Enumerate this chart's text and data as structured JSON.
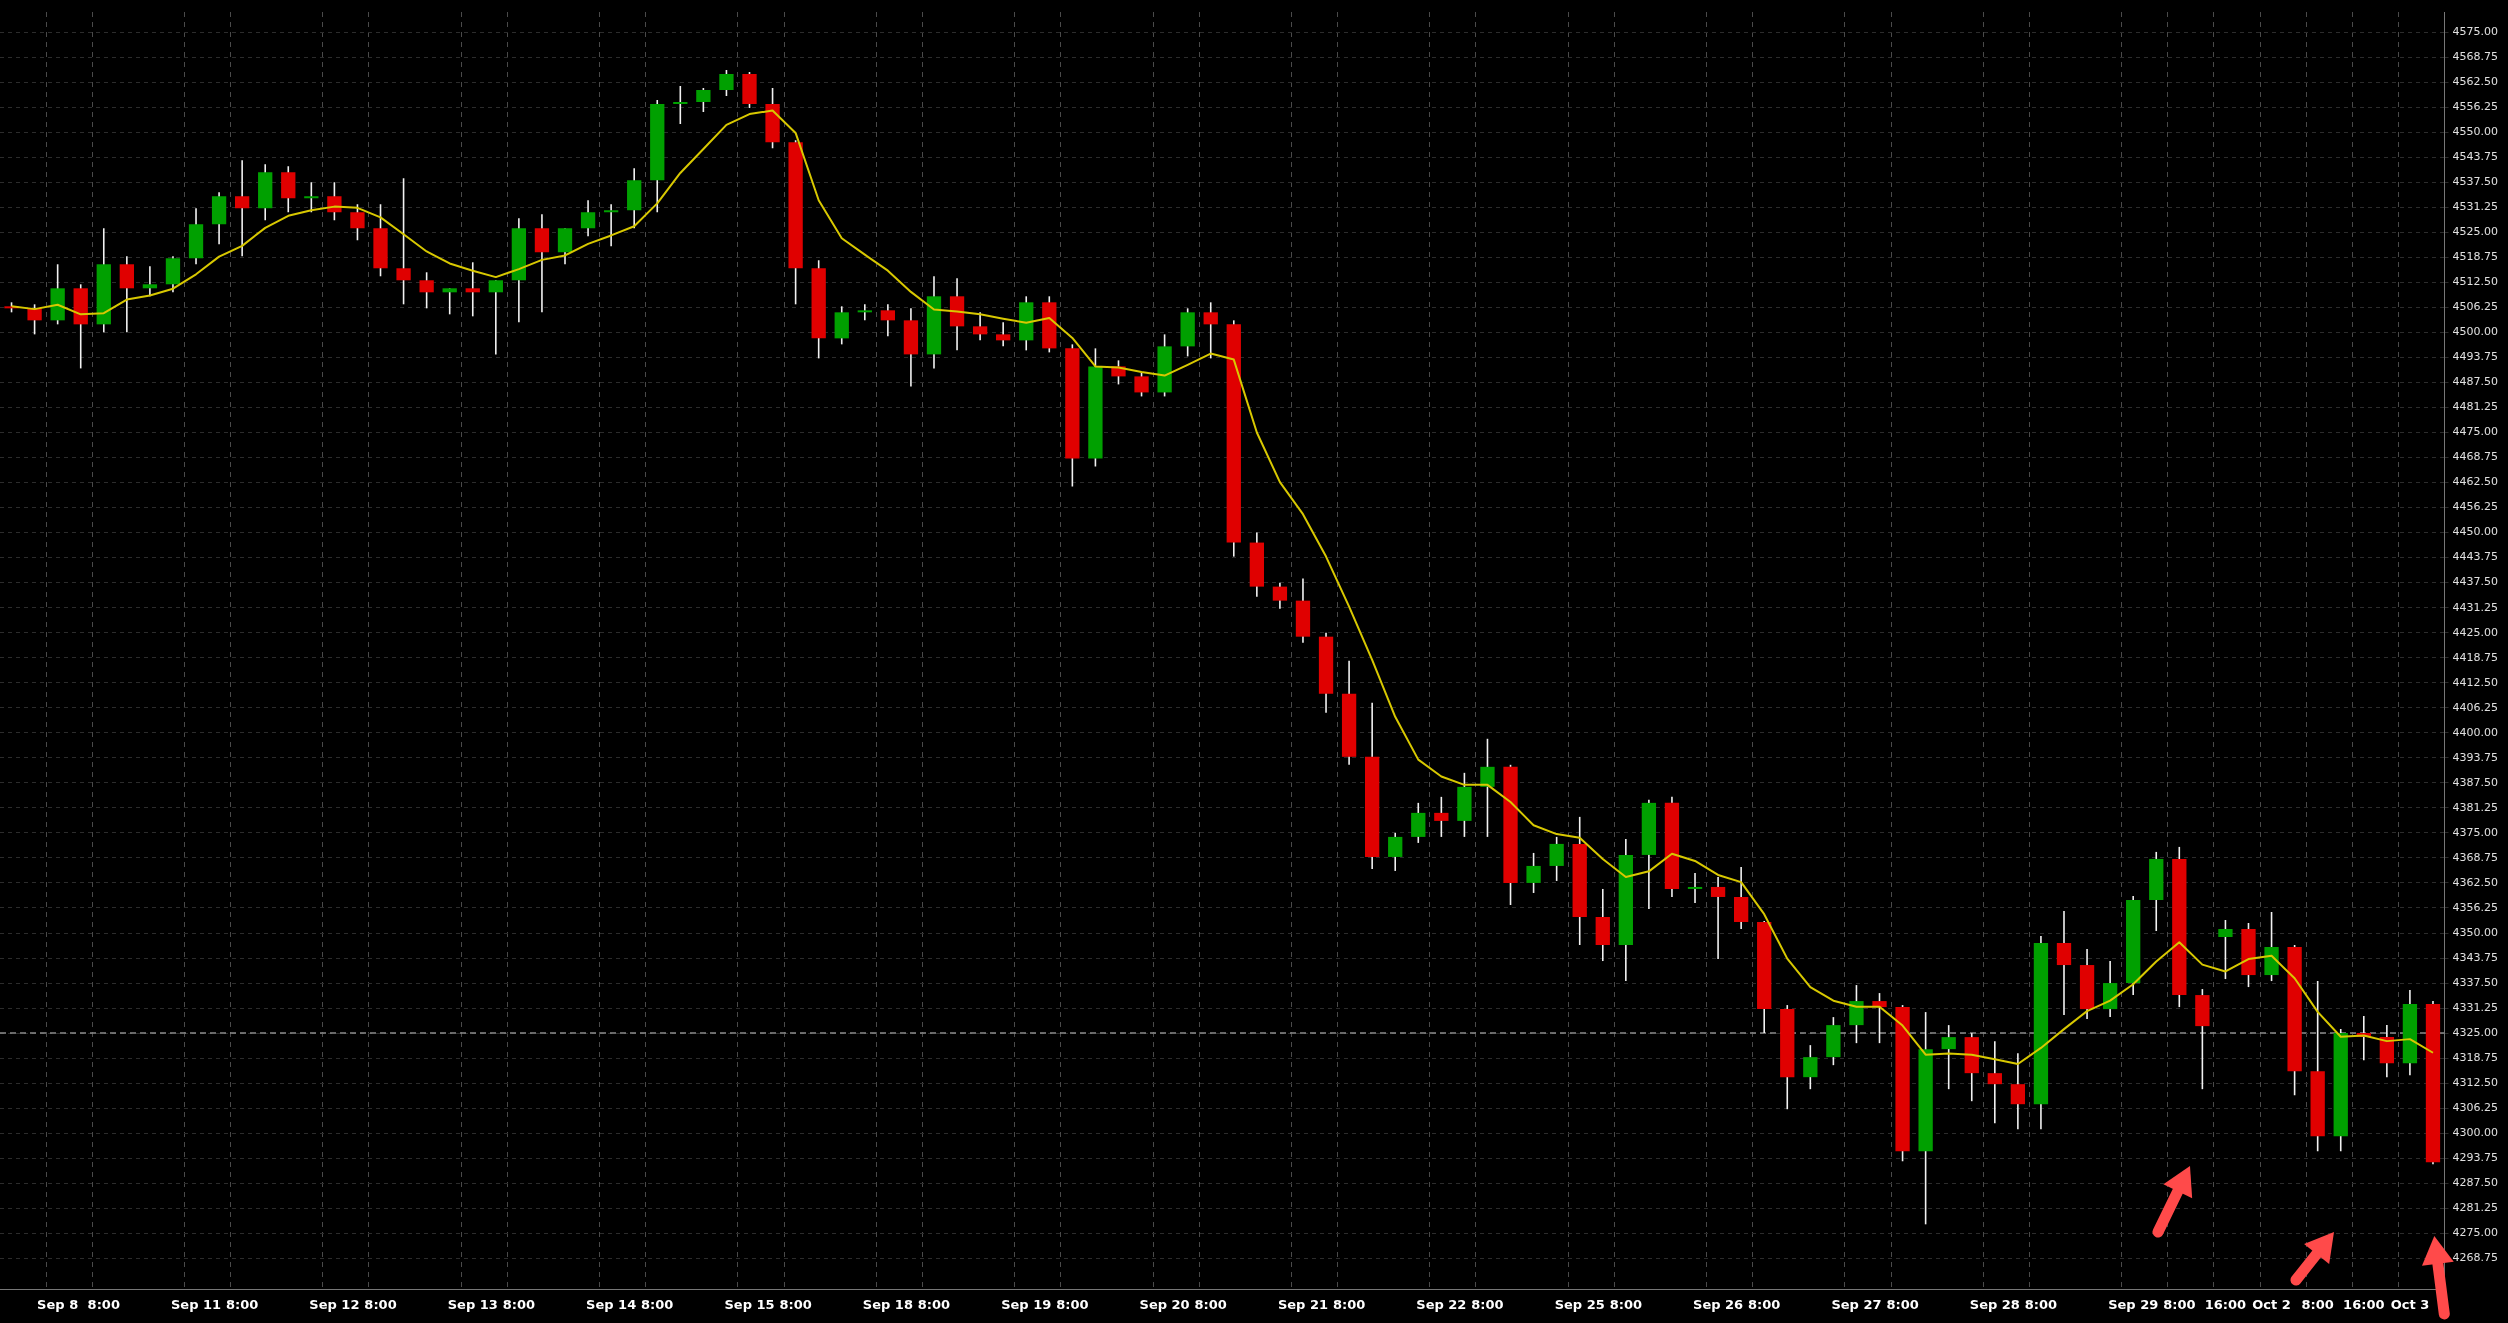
{
  "chart_data": {
    "type": "candlestick",
    "categories": [
      null,
      null,
      "Sep 8",
      null,
      "8:00",
      null,
      null,
      null,
      "Sep 11",
      null,
      "8:00",
      null,
      null,
      null,
      "Sep 12",
      null,
      "8:00",
      null,
      null,
      null,
      "Sep 13",
      null,
      "8:00",
      null,
      null,
      null,
      "Sep 14",
      null,
      "8:00",
      null,
      null,
      null,
      "Sep 15",
      null,
      "8:00",
      null,
      null,
      null,
      "Sep 18",
      null,
      "8:00",
      null,
      null,
      null,
      "Sep 19",
      null,
      "8:00",
      null,
      null,
      null,
      "Sep 20",
      null,
      "8:00",
      null,
      null,
      null,
      "Sep 21",
      null,
      "8:00",
      null,
      null,
      null,
      "Sep 22",
      null,
      "8:00",
      null,
      null,
      null,
      "Sep 25",
      null,
      "8:00",
      null,
      null,
      null,
      "Sep 26",
      null,
      "8:00",
      null,
      null,
      null,
      "Sep 27",
      null,
      "8:00",
      null,
      null,
      null,
      "Sep 28",
      null,
      "8:00",
      null,
      null,
      null,
      "Sep 29",
      null,
      "8:00",
      null,
      "16:00",
      null,
      "Oct 2",
      null,
      "8:00",
      null,
      "16:00",
      null,
      "Oct 3",
      null
    ],
    "series": [
      {
        "type": "candlestick",
        "ohlc": [
          [
            4506.5,
            4507.5,
            4505,
            4506
          ],
          [
            4506,
            4507,
            4499.5,
            4503
          ],
          [
            4503,
            4517,
            4502,
            4511
          ],
          [
            4511,
            4512,
            4491,
            4502
          ],
          [
            4502,
            4526,
            4500,
            4517
          ],
          [
            4517,
            4519,
            4500,
            4511
          ],
          [
            4511,
            4516.5,
            4509,
            4512
          ],
          [
            4512,
            4519,
            4510,
            4518.5
          ],
          [
            4518.5,
            4531,
            4517,
            4527
          ],
          [
            4527,
            4535,
            4522,
            4534
          ],
          [
            4534,
            4543,
            4519,
            4531
          ],
          [
            4531,
            4542,
            4528,
            4540
          ],
          [
            4540,
            4541.5,
            4530,
            4533.5
          ],
          [
            4533.5,
            4537.5,
            4530,
            4534
          ],
          [
            4534,
            4537.5,
            4528,
            4530
          ],
          [
            4530,
            4532,
            4523,
            4526
          ],
          [
            4526,
            4532,
            4514,
            4516
          ],
          [
            4516,
            4538.5,
            4507,
            4513
          ],
          [
            4513,
            4515,
            4506,
            4510
          ],
          [
            4510,
            4511,
            4504.5,
            4511
          ],
          [
            4511,
            4517.5,
            4504,
            4510
          ],
          [
            4510,
            4513,
            4494.5,
            4513
          ],
          [
            4513,
            4528.5,
            4502.5,
            4526
          ],
          [
            4526,
            4529.5,
            4505,
            4520
          ],
          [
            4520,
            4526,
            4517,
            4526
          ],
          [
            4526,
            4533,
            4524,
            4530
          ],
          [
            4530,
            4532,
            4521.5,
            4530.5
          ],
          [
            4530.5,
            4541,
            4526,
            4538
          ],
          [
            4538,
            4558,
            4530,
            4557
          ],
          [
            4557,
            4561.5,
            4552,
            4557.5
          ],
          [
            4557.5,
            4561,
            4555,
            4560.5
          ],
          [
            4560.5,
            4565.5,
            4559,
            4564.5
          ],
          [
            4564.5,
            4565,
            4556,
            4557
          ],
          [
            4557,
            4561,
            4546,
            4547.5
          ],
          [
            4547.5,
            4548,
            4507,
            4516
          ],
          [
            4516,
            4518,
            4493.5,
            4498.5
          ],
          [
            4498.5,
            4506.5,
            4497,
            4505
          ],
          [
            4505,
            4507,
            4503,
            4505.5
          ],
          [
            4505.5,
            4507,
            4499,
            4503
          ],
          [
            4503,
            4506,
            4486.5,
            4494.5
          ],
          [
            4494.5,
            4514,
            4491,
            4509
          ],
          [
            4509,
            4513.5,
            4495.5,
            4501.5
          ],
          [
            4501.5,
            4505,
            4498,
            4499.5
          ],
          [
            4499.5,
            4502.5,
            4496.5,
            4498
          ],
          [
            4498,
            4509,
            4495.5,
            4507.5
          ],
          [
            4507.5,
            4509,
            4495,
            4496
          ],
          [
            4496,
            4497,
            4461.5,
            4468.5
          ],
          [
            4468.5,
            4496,
            4466.5,
            4491.5
          ],
          [
            4491.5,
            4493,
            4487,
            4489
          ],
          [
            4489,
            4490,
            4484,
            4485
          ],
          [
            4485,
            4499.5,
            4484,
            4496.5
          ],
          [
            4496.5,
            4506,
            4494,
            4505
          ],
          [
            4505,
            4507.5,
            4493.5,
            4502
          ],
          [
            4502,
            4503,
            4444,
            4447.5
          ],
          [
            4447.5,
            4450,
            4434,
            4436.5
          ],
          [
            4436.5,
            4437.5,
            4431,
            4433
          ],
          [
            4433,
            4438.5,
            4422.5,
            4424
          ],
          [
            4424,
            4425,
            4405,
            4409.75
          ],
          [
            4409.75,
            4418,
            4392,
            4394
          ],
          [
            4394,
            4407.5,
            4366,
            4369
          ],
          [
            4369,
            4375,
            4365.5,
            4374
          ],
          [
            4374,
            4382.5,
            4372.5,
            4380
          ],
          [
            4380,
            4384,
            4374,
            4378
          ],
          [
            4378,
            4390,
            4374,
            4386.5
          ],
          [
            4386.5,
            4398.5,
            4374,
            4391.5
          ],
          [
            4391.5,
            4392,
            4357,
            4362.5
          ],
          [
            4362.5,
            4370,
            4360,
            4366.75
          ],
          [
            4366.75,
            4374,
            4363,
            4372.25
          ],
          [
            4372.25,
            4379,
            4347,
            4354
          ],
          [
            4354,
            4361,
            4343,
            4347
          ],
          [
            4347,
            4373.5,
            4338,
            4369.5
          ],
          [
            4369.5,
            4383.25,
            4356,
            4382.5
          ],
          [
            4382.5,
            4384,
            4359,
            4361
          ],
          [
            4361,
            4365,
            4357.5,
            4361.5
          ],
          [
            4361.5,
            4364,
            4343.5,
            4359
          ],
          [
            4359,
            4366.5,
            4351,
            4352.75
          ],
          [
            4352.75,
            4353,
            4325,
            4331
          ],
          [
            4331,
            4332,
            4306,
            4314
          ],
          [
            4314,
            4322,
            4311,
            4319
          ],
          [
            4319,
            4329,
            4317,
            4327
          ],
          [
            4327,
            4337,
            4322.5,
            4333
          ],
          [
            4333,
            4335,
            4322.5,
            4331.5
          ],
          [
            4331.5,
            4332,
            4293,
            4295.5
          ],
          [
            4295.5,
            4330.25,
            4277.25,
            4321
          ],
          [
            4321,
            4327,
            4311,
            4324
          ],
          [
            4324,
            4325,
            4308,
            4315
          ],
          [
            4315,
            4323,
            4302.5,
            4312.25
          ],
          [
            4312.25,
            4320,
            4301,
            4307.25
          ],
          [
            4307.25,
            4349.25,
            4301,
            4347.5
          ],
          [
            4347.5,
            4355.5,
            4329.5,
            4342
          ],
          [
            4342,
            4346,
            4328.5,
            4331
          ],
          [
            4331,
            4343,
            4329,
            4337.5
          ],
          [
            4337.5,
            4359.25,
            4334.5,
            4358.25
          ],
          [
            4358.25,
            4370.25,
            4350.5,
            4368.5
          ],
          [
            4368.5,
            4371.5,
            4331.5,
            4334.5
          ],
          [
            4334.5,
            4336,
            4311,
            4326.75
          ],
          [
            4349,
            4353.25,
            4338.5,
            4351
          ],
          [
            4351,
            4352.5,
            4336.5,
            4339.5
          ],
          [
            4339.5,
            4355.25,
            4338,
            4346.5
          ],
          [
            4346.5,
            4347,
            4309.5,
            4315.5
          ],
          [
            4315.5,
            4338,
            4295.5,
            4299.25
          ],
          [
            4299.25,
            4326,
            4295.5,
            4325
          ],
          [
            4325,
            4329.25,
            4318.25,
            4324
          ],
          [
            4324,
            4327,
            4314,
            4317.5
          ],
          [
            4317.5,
            4335.75,
            4314.5,
            4332.25
          ],
          [
            4332.25,
            4333,
            4292.25,
            4292.75
          ]
        ],
        "colors": [
          "#e00000",
          "#e00000",
          "#00a000",
          "#e00000",
          "#00a000",
          "#e00000",
          "#00a000",
          "#00a000",
          "#00a000",
          "#00a000",
          "#e00000",
          "#00a000",
          "#e00000",
          "#00a000",
          "#e00000",
          "#e00000",
          "#e00000",
          "#e00000",
          "#e00000",
          "#00a000",
          "#e00000",
          "#00a000",
          "#00a000",
          "#e00000",
          "#00a000",
          "#00a000",
          "#00a000",
          "#00a000",
          "#00a000",
          "#00a000",
          "#00a000",
          "#00a000",
          "#e00000",
          "#e00000",
          "#e00000",
          "#e00000",
          "#00a000",
          "#00a000",
          "#e00000",
          "#e00000",
          "#00a000",
          "#e00000",
          "#e00000",
          "#e00000",
          "#00a000",
          "#e00000",
          "#e00000",
          "#00a000",
          "#e00000",
          "#e00000",
          "#00a000",
          "#00a000",
          "#e00000",
          "#e00000",
          "#e00000",
          "#e00000",
          "#e00000",
          "#e00000",
          "#e00000",
          "#e00000",
          "#00a000",
          "#00a000",
          "#e00000",
          "#00a000",
          "#00a000",
          "#e00000",
          "#00a000",
          "#00a000",
          "#e00000",
          "#e00000",
          "#00a000",
          "#00a000",
          "#e00000",
          "#00a000",
          "#e00000",
          "#e00000",
          "#e00000",
          "#e00000",
          "#00a000",
          "#00a000",
          "#00a000",
          "#e00000",
          "#e00000",
          "#00a000",
          "#00a000",
          "#e00000",
          "#e00000",
          "#e00000",
          "#00a000",
          "#e00000",
          "#e00000",
          "#00a000",
          "#00a000",
          "#00a000",
          "#e00000",
          "#e00000",
          "#00a000",
          "#e00000",
          "#00a000",
          "#e00000",
          "#e00000",
          "#00a000",
          "#e00000",
          "#e00000",
          "#00a000",
          "#e00000"
        ]
      },
      {
        "type": "line",
        "color": "#d8c800",
        "values": [
          4506.5,
          4505.8,
          4506.9,
          4504.5,
          4504.8,
          4508.2,
          4509.2,
          4510.9,
          4514.5,
          4518.9,
          4521.6,
          4526.1,
          4529.1,
          4530.5,
          4531.4,
          4531.1,
          4528.7,
          4524.5,
          4520.2,
          4517.2,
          4515.4,
          4513.8,
          4515.8,
          4518.1,
          4519.2,
          4522.1,
          4524.2,
          4526.5,
          4532.2,
          4539.8,
          4545.8,
          4551.8,
          4554.5,
          4555.4,
          4549.8,
          4533,
          4523.5,
          4519.4,
          4515.4,
          4510.1,
          4505.7,
          4505.2,
          4504.5,
          4503.4,
          4502.4,
          4503.6,
          4498.6,
          4491.5,
          4491.2,
          4490.1,
          4489.2,
          4491.9,
          4494.7,
          4493.2,
          4475,
          4462.6,
          4454.6,
          4444,
          4431.5,
          4418.2,
          4404,
          4393.3,
          4389.1,
          4387,
          4387,
          4382.7,
          4376.9,
          4374.7,
          4373.8,
          4368.5,
          4364,
          4365.4,
          4369.8,
          4368,
          4364.5,
          4362.7,
          4354.7,
          4343.6,
          4336.5,
          4333.1,
          4331.6,
          4331.6,
          4326.9,
          4319.6,
          4319.9,
          4319.6,
          4318.5,
          4317.3,
          4321.3,
          4326,
          4330.5,
          4333.1,
          4337.2,
          4342.9,
          4347.7,
          4342.1,
          4340.4,
          4343.5,
          4344.3,
          4338.7,
          4330.3,
          4324.1,
          4324.4,
          4323,
          4323.5,
          4320.1
        ]
      }
    ],
    "ylim": [
      4261,
      4580
    ],
    "yticks": [
      {
        "value": 4268.75,
        "label": "4268.75"
      },
      {
        "value": 4275,
        "label": "4275.00"
      },
      {
        "value": 4281.25,
        "label": "4281.25"
      },
      {
        "value": 4287.5,
        "label": "4287.50"
      },
      {
        "value": 4293.75,
        "label": "4293.75"
      },
      {
        "value": 4300,
        "label": "4300.00"
      },
      {
        "value": 4306.25,
        "label": "4306.25"
      },
      {
        "value": 4312.5,
        "label": "4312.50"
      },
      {
        "value": 4318.75,
        "label": "4318.75"
      },
      {
        "value": 4325,
        "label": "4325.00"
      },
      {
        "value": 4331.25,
        "label": "4331.25"
      },
      {
        "value": 4337.5,
        "label": "4337.50"
      },
      {
        "value": 4343.75,
        "label": "4343.75"
      },
      {
        "value": 4350,
        "label": "4350.00"
      },
      {
        "value": 4356.25,
        "label": "4356.25"
      },
      {
        "value": 4362.5,
        "label": "4362.50"
      },
      {
        "value": 4368.75,
        "label": "4368.75"
      },
      {
        "value": 4375,
        "label": "4375.00"
      },
      {
        "value": 4381.25,
        "label": "4381.25"
      },
      {
        "value": 4387.5,
        "label": "4387.50"
      },
      {
        "value": 4393.75,
        "label": "4393.75"
      },
      {
        "value": 4400,
        "label": "4400.00"
      },
      {
        "value": 4406.25,
        "label": "4406.25"
      },
      {
        "value": 4412.5,
        "label": "4412.50"
      },
      {
        "value": 4418.75,
        "label": "4418.75"
      },
      {
        "value": 4425,
        "label": "4425.00"
      },
      {
        "value": 4431.25,
        "label": "4431.25"
      },
      {
        "value": 4437.5,
        "label": "4437.50"
      },
      {
        "value": 4443.75,
        "label": "4443.75"
      },
      {
        "value": 4450,
        "label": "4450.00"
      },
      {
        "value": 4456.25,
        "label": "4456.25"
      },
      {
        "value": 4462.5,
        "label": "4462.50"
      },
      {
        "value": 4468.75,
        "label": "4468.75"
      },
      {
        "value": 4475,
        "label": "4475.00"
      },
      {
        "value": 4481.25,
        "label": "4481.25"
      },
      {
        "value": 4487.5,
        "label": "4487.50"
      },
      {
        "value": 4493.75,
        "label": "4493.75"
      },
      {
        "value": 4500,
        "label": "4500.00"
      },
      {
        "value": 4506.25,
        "label": "4506.25"
      },
      {
        "value": 4512.5,
        "label": "4512.50"
      },
      {
        "value": 4518.75,
        "label": "4518.75"
      },
      {
        "value": 4525,
        "label": "4525.00"
      },
      {
        "value": 4531.25,
        "label": "4531.25"
      },
      {
        "value": 4537.5,
        "label": "4537.50"
      },
      {
        "value": 4543.75,
        "label": "4543.75"
      },
      {
        "value": 4550,
        "label": "4550.00"
      },
      {
        "value": 4556.25,
        "label": "4556.25"
      },
      {
        "value": 4562.5,
        "label": "4562.50"
      },
      {
        "value": 4568.75,
        "label": "4568.75"
      },
      {
        "value": 4575,
        "label": "4575.00"
      }
    ],
    "grid": true,
    "ref_lines": [
      {
        "axis": "y",
        "value": 4325,
        "color": "#8a8a8a",
        "line_style": "dashed"
      }
    ]
  }
}
